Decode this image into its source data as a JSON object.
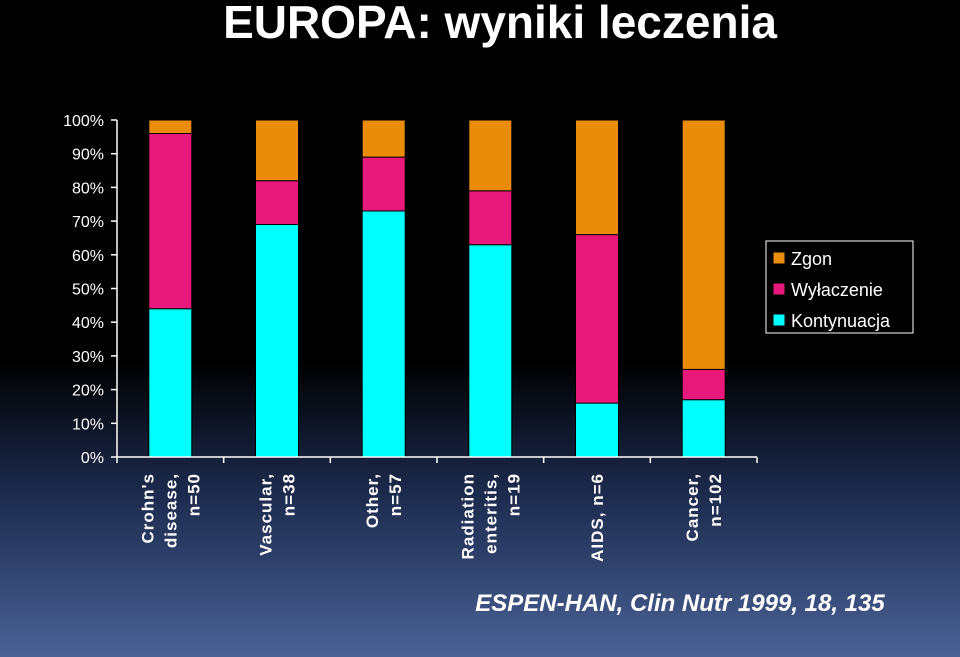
{
  "slide": {
    "title": "EUROPA: wyniki leczenia",
    "citation": "ESPEN-HAN, Clin Nutr 1999, 18, 135"
  },
  "colors": {
    "Zgon": "#ea8c0a",
    "Wyłaczenie": "#e8197a",
    "Kontynuacja": "#00ffff"
  },
  "chart_data": {
    "type": "bar",
    "stacked": true,
    "percent": true,
    "categories": [
      [
        "Crohn's",
        "disease,",
        "n=50"
      ],
      [
        "Vascular,",
        "n=38"
      ],
      [
        "Other,",
        "n=57"
      ],
      [
        "Radiation",
        "enteritis,",
        "n=19"
      ],
      [
        "AIDS, n=6"
      ],
      [
        "Cancer,",
        "n=102"
      ]
    ],
    "series": [
      {
        "name": "Kontynuacja",
        "values": [
          44,
          69,
          73,
          63,
          16,
          17
        ]
      },
      {
        "name": "Wyłaczenie",
        "values": [
          52,
          13,
          16,
          16,
          50,
          9
        ]
      },
      {
        "name": "Zgon",
        "values": [
          4,
          18,
          11,
          21,
          34,
          74
        ]
      }
    ],
    "legend_order": [
      "Zgon",
      "Wyłaczenie",
      "Kontynuacja"
    ],
    "yticks": [
      "0%",
      "10%",
      "20%",
      "30%",
      "40%",
      "50%",
      "60%",
      "70%",
      "80%",
      "90%",
      "100%"
    ],
    "ylim": [
      0,
      100
    ],
    "legend_position": "right",
    "grid": false
  }
}
